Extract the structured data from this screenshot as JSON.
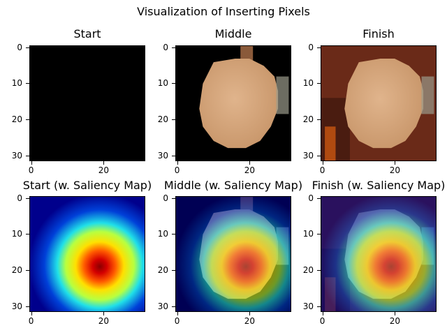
{
  "title": "Visualization of Inserting Pixels",
  "chart_data": [
    {
      "type": "heatmap",
      "title": "Start",
      "image_content": "all-black image (no pixels inserted yet)",
      "xticks": [
        0,
        20
      ],
      "yticks": [
        0,
        10,
        20,
        30
      ],
      "xlim": [
        -0.5,
        31.5
      ],
      "ylim": [
        31.5,
        -0.5
      ]
    },
    {
      "type": "heatmap",
      "title": "Middle",
      "image_content": "partially inserted photo: light-brown round object on black background",
      "xticks": [
        0,
        20
      ],
      "yticks": [
        0,
        10,
        20,
        30
      ],
      "xlim": [
        -0.5,
        31.5
      ],
      "ylim": [
        31.5,
        -0.5
      ]
    },
    {
      "type": "heatmap",
      "title": "Finish",
      "image_content": "full photo: light-brown round object on dark reddish-brown background",
      "xticks": [
        0,
        20
      ],
      "yticks": [
        0,
        10,
        20,
        30
      ],
      "xlim": [
        -0.5,
        31.5
      ],
      "ylim": [
        31.5,
        -0.5
      ]
    },
    {
      "type": "heatmap",
      "title": "Start (w. Saliency Map)",
      "image_content": "jet colormap saliency, peak (red) near x=19, y=19",
      "xticks": [
        0,
        20
      ],
      "yticks": [
        0,
        10,
        20,
        30
      ],
      "xlim": [
        -0.5,
        31.5
      ],
      "ylim": [
        31.5,
        -0.5
      ]
    },
    {
      "type": "heatmap",
      "title": "Middle (w. Saliency Map)",
      "image_content": "saliency overlay on middle image, peak near x=19, y=19",
      "xticks": [
        0,
        20
      ],
      "yticks": [
        0,
        10,
        20,
        30
      ],
      "xlim": [
        -0.5,
        31.5
      ],
      "ylim": [
        31.5,
        -0.5
      ]
    },
    {
      "type": "heatmap",
      "title": "Finish (w. Saliency Map)",
      "image_content": "saliency overlay on finish image, peak near x=19, y=19",
      "xticks": [
        0,
        20
      ],
      "yticks": [
        0,
        10,
        20,
        30
      ],
      "xlim": [
        -0.5,
        31.5
      ],
      "ylim": [
        31.5,
        -0.5
      ]
    }
  ],
  "colors": {
    "background": "#ffffff",
    "black": "#000000",
    "object_light": "#e0b48c",
    "object_mid": "#c8966a",
    "finish_background": "#6a2a18",
    "finish_background_dark": "#4a1c10",
    "jet_red": "#d40000",
    "jet_yellow": "#ffe000",
    "jet_cyan": "#20e0e8",
    "jet_blue": "#0040d8",
    "jet_navy": "#00008c"
  }
}
